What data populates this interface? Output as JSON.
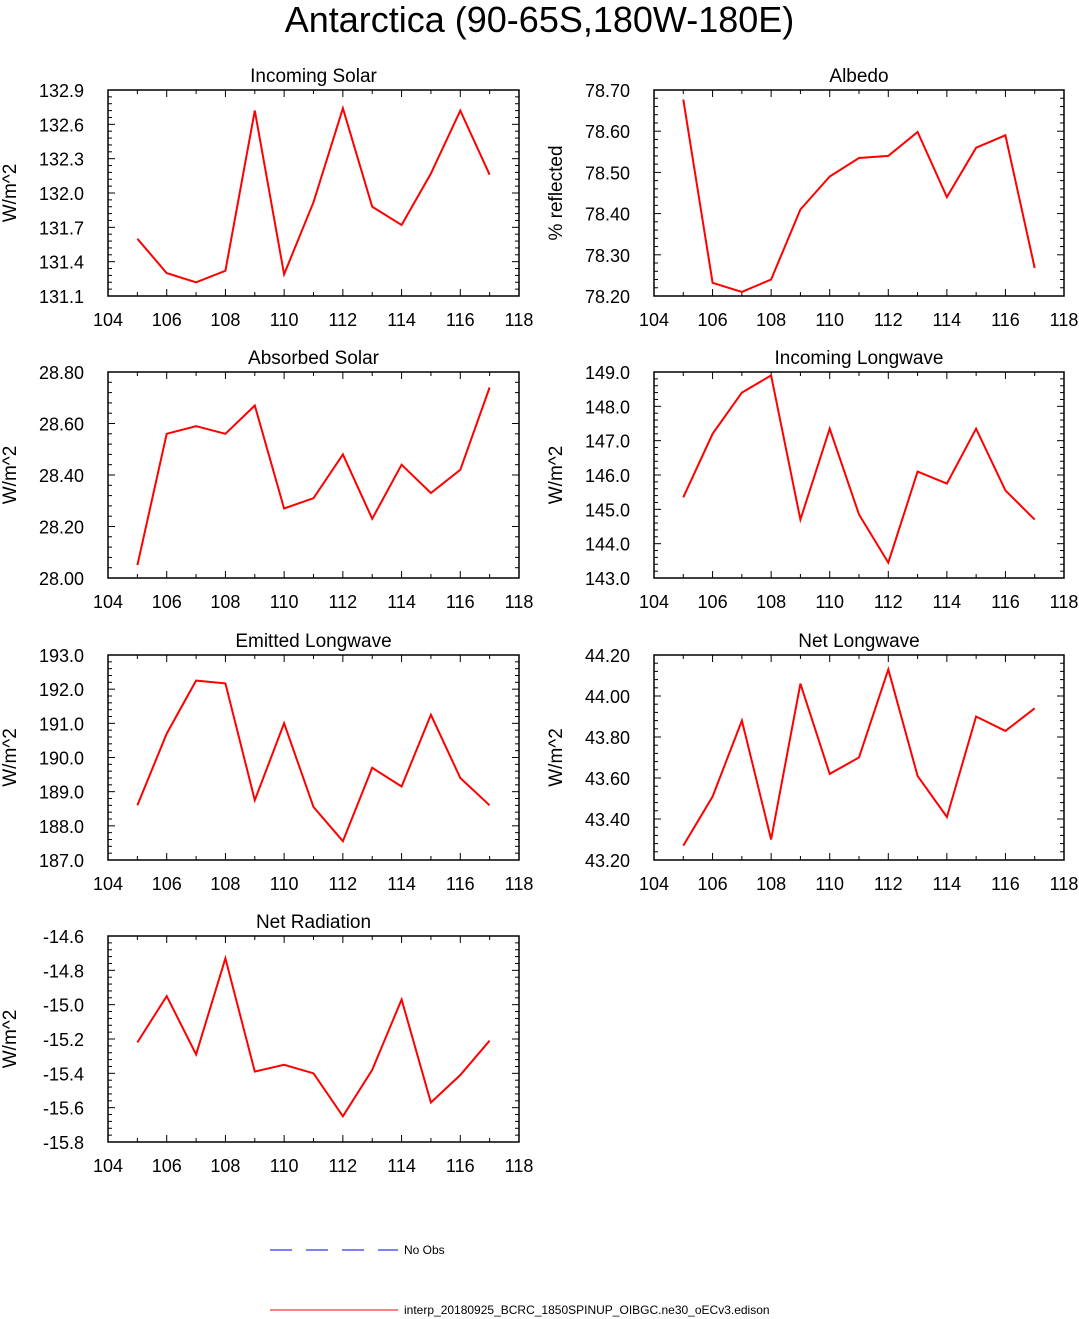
{
  "title": "Antarctica (90-65S,180W-180E)",
  "legend": [
    {
      "label": "No Obs",
      "color": "#0000ff",
      "style": "dashed"
    },
    {
      "label": "interp_20180925_BCRC_1850SPINUP_OIBGC.ne30_oECv3.edison",
      "color": "#ff0000",
      "style": "solid"
    }
  ],
  "chart_data": [
    {
      "type": "line",
      "title": "Incoming Solar",
      "ylabel": "W/m^2",
      "xlim": [
        104,
        118
      ],
      "ylim": [
        131.1,
        132.9
      ],
      "xticks": [
        "104",
        "106",
        "108",
        "110",
        "112",
        "114",
        "116",
        "118"
      ],
      "yticks": [
        "131.1",
        "131.4",
        "131.7",
        "132.0",
        "132.3",
        "132.6",
        "132.9"
      ],
      "x": [
        105,
        106,
        107,
        108,
        109,
        110,
        111,
        112,
        113,
        114,
        115,
        116,
        117
      ],
      "series": [
        {
          "values": [
            131.6,
            131.3,
            131.22,
            131.32,
            132.72,
            131.29,
            131.92,
            132.74,
            131.88,
            131.72,
            132.17,
            132.72,
            132.16
          ],
          "color": "#ff0000"
        }
      ]
    },
    {
      "type": "line",
      "title": "Albedo",
      "ylabel": "% reflected",
      "xlim": [
        104,
        118
      ],
      "ylim": [
        78.2,
        78.7
      ],
      "xticks": [
        "104",
        "106",
        "108",
        "110",
        "112",
        "114",
        "116",
        "118"
      ],
      "yticks": [
        "78.20",
        "78.30",
        "78.40",
        "78.50",
        "78.60",
        "78.70"
      ],
      "x": [
        105,
        106,
        107,
        108,
        109,
        110,
        111,
        112,
        113,
        114,
        115,
        116,
        117
      ],
      "series": [
        {
          "values": [
            78.677,
            78.232,
            78.21,
            78.24,
            78.41,
            78.49,
            78.535,
            78.54,
            78.598,
            78.44,
            78.56,
            78.59,
            78.268
          ],
          "color": "#ff0000"
        }
      ]
    },
    {
      "type": "line",
      "title": "Absorbed Solar",
      "ylabel": "W/m^2",
      "xlim": [
        104,
        118
      ],
      "ylim": [
        28.0,
        28.8
      ],
      "xticks": [
        "104",
        "106",
        "108",
        "110",
        "112",
        "114",
        "116",
        "118"
      ],
      "yticks": [
        "28.00",
        "28.20",
        "28.40",
        "28.60",
        "28.80"
      ],
      "x": [
        105,
        106,
        107,
        108,
        109,
        110,
        111,
        112,
        113,
        114,
        115,
        116,
        117
      ],
      "series": [
        {
          "values": [
            28.05,
            28.56,
            28.59,
            28.56,
            28.67,
            28.27,
            28.31,
            28.48,
            28.23,
            28.44,
            28.33,
            28.42,
            28.74
          ],
          "color": "#ff0000"
        }
      ]
    },
    {
      "type": "line",
      "title": "Incoming Longwave",
      "ylabel": "W/m^2",
      "xlim": [
        104,
        118
      ],
      "ylim": [
        143.0,
        149.0
      ],
      "xticks": [
        "104",
        "106",
        "108",
        "110",
        "112",
        "114",
        "116",
        "118"
      ],
      "yticks": [
        "143.0",
        "144.0",
        "145.0",
        "146.0",
        "147.0",
        "148.0",
        "149.0"
      ],
      "x": [
        105,
        106,
        107,
        108,
        109,
        110,
        111,
        112,
        113,
        114,
        115,
        116,
        117
      ],
      "series": [
        {
          "values": [
            145.35,
            147.2,
            148.4,
            148.9,
            144.7,
            147.35,
            144.85,
            143.45,
            146.1,
            145.75,
            147.35,
            145.55,
            144.7
          ],
          "color": "#ff0000"
        }
      ]
    },
    {
      "type": "line",
      "title": "Emitted Longwave",
      "ylabel": "W/m^2",
      "xlim": [
        104,
        118
      ],
      "ylim": [
        187.0,
        193.0
      ],
      "xticks": [
        "104",
        "106",
        "108",
        "110",
        "112",
        "114",
        "116",
        "118"
      ],
      "yticks": [
        "187.0",
        "188.0",
        "189.0",
        "190.0",
        "191.0",
        "192.0",
        "193.0"
      ],
      "x": [
        105,
        106,
        107,
        108,
        109,
        110,
        111,
        112,
        113,
        114,
        115,
        116,
        117
      ],
      "series": [
        {
          "values": [
            188.6,
            190.7,
            192.25,
            192.17,
            188.75,
            191.0,
            188.55,
            187.55,
            189.7,
            189.15,
            191.25,
            189.4,
            188.6
          ],
          "color": "#ff0000"
        }
      ]
    },
    {
      "type": "line",
      "title": "Net Longwave",
      "ylabel": "W/m^2",
      "xlim": [
        104,
        118
      ],
      "ylim": [
        43.2,
        44.2
      ],
      "xticks": [
        "104",
        "106",
        "108",
        "110",
        "112",
        "114",
        "116",
        "118"
      ],
      "yticks": [
        "43.20",
        "43.40",
        "43.60",
        "43.80",
        "44.00",
        "44.20"
      ],
      "x": [
        105,
        106,
        107,
        108,
        109,
        110,
        111,
        112,
        113,
        114,
        115,
        116,
        117
      ],
      "series": [
        {
          "values": [
            43.27,
            43.51,
            43.88,
            43.3,
            44.06,
            43.62,
            43.7,
            44.13,
            43.61,
            43.41,
            43.9,
            43.83,
            43.94
          ],
          "color": "#ff0000"
        }
      ]
    },
    {
      "type": "line",
      "title": "Net Radiation",
      "ylabel": "W/m^2",
      "xlim": [
        104,
        118
      ],
      "ylim": [
        -15.8,
        -14.6
      ],
      "xticks": [
        "104",
        "106",
        "108",
        "110",
        "112",
        "114",
        "116",
        "118"
      ],
      "yticks": [
        "-15.8",
        "-15.6",
        "-15.4",
        "-15.2",
        "-15.0",
        "-14.8",
        "-14.6"
      ],
      "x": [
        105,
        106,
        107,
        108,
        109,
        110,
        111,
        112,
        113,
        114,
        115,
        116,
        117
      ],
      "series": [
        {
          "values": [
            -15.22,
            -14.95,
            -15.29,
            -14.73,
            -15.39,
            -15.35,
            -15.4,
            -15.65,
            -15.38,
            -14.97,
            -15.57,
            -15.41,
            -15.21
          ],
          "color": "#ff0000"
        }
      ]
    }
  ]
}
